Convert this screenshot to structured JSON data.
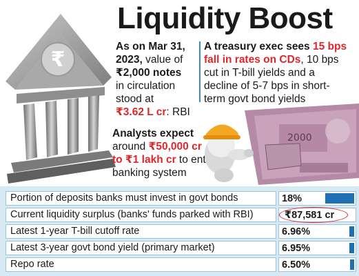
{
  "header": {
    "title": "Liquidity Boost"
  },
  "block1": {
    "line1": "As on Mar 31,",
    "line2_bold": "2023,",
    "line2_rest": " value of",
    "line3_bold": "₹2,000 notes",
    "line4": "in circulation",
    "line5": "stood at",
    "line6_red": "₹3.62 L cr",
    "line6_rest": ": RBI"
  },
  "block2": {
    "line1_bold": "A treasury exec sees ",
    "line1_red": "15 bps",
    "line2_red": "fall in rates on CDs",
    "line2_rest": ", 10 bps",
    "line3": "cut in T-bill yields and a",
    "line4": "decline of 5-7 bps in short-",
    "line5": "term govt bond yields"
  },
  "block3": {
    "line1_bold": "Analysts expect",
    "line2_pre": "around ",
    "line2_red": "₹50,000 cr",
    "line3_red": "to ₹1 lakh cr",
    "line3_rest": " to enter",
    "line4": "banking system"
  },
  "table": {
    "rows": [
      {
        "label": "Portion of deposits banks must invest in govt bonds",
        "value": "18%",
        "bar_fraction": 0.72
      },
      {
        "label": "Current liquidity surplus (banks' funds parked with RBI)",
        "value": "₹87,581 cr",
        "bar_fraction": 0
      },
      {
        "label": "Latest 1-year T-bill cutoff rate",
        "value": "6.96%",
        "bar_fraction": 0.12
      },
      {
        "label": "Latest 3-year govt bond yield (primary market)",
        "value": "6.95%",
        "bar_fraction": 0.12
      },
      {
        "label": "Repo rate",
        "value": "6.50%",
        "bar_fraction": 0.1
      }
    ]
  },
  "colors": {
    "accent_red": "#e0262b",
    "bar_blue": "#1f6fb3",
    "table_bg": "#d6e9f5",
    "bank_gray": "#8a8a8a"
  },
  "icons": {
    "bank": "bank-building-icon",
    "rupee": "rupee-icon",
    "worker": "worker-helmet-icon",
    "currency": "currency-note-puzzle-icon"
  }
}
